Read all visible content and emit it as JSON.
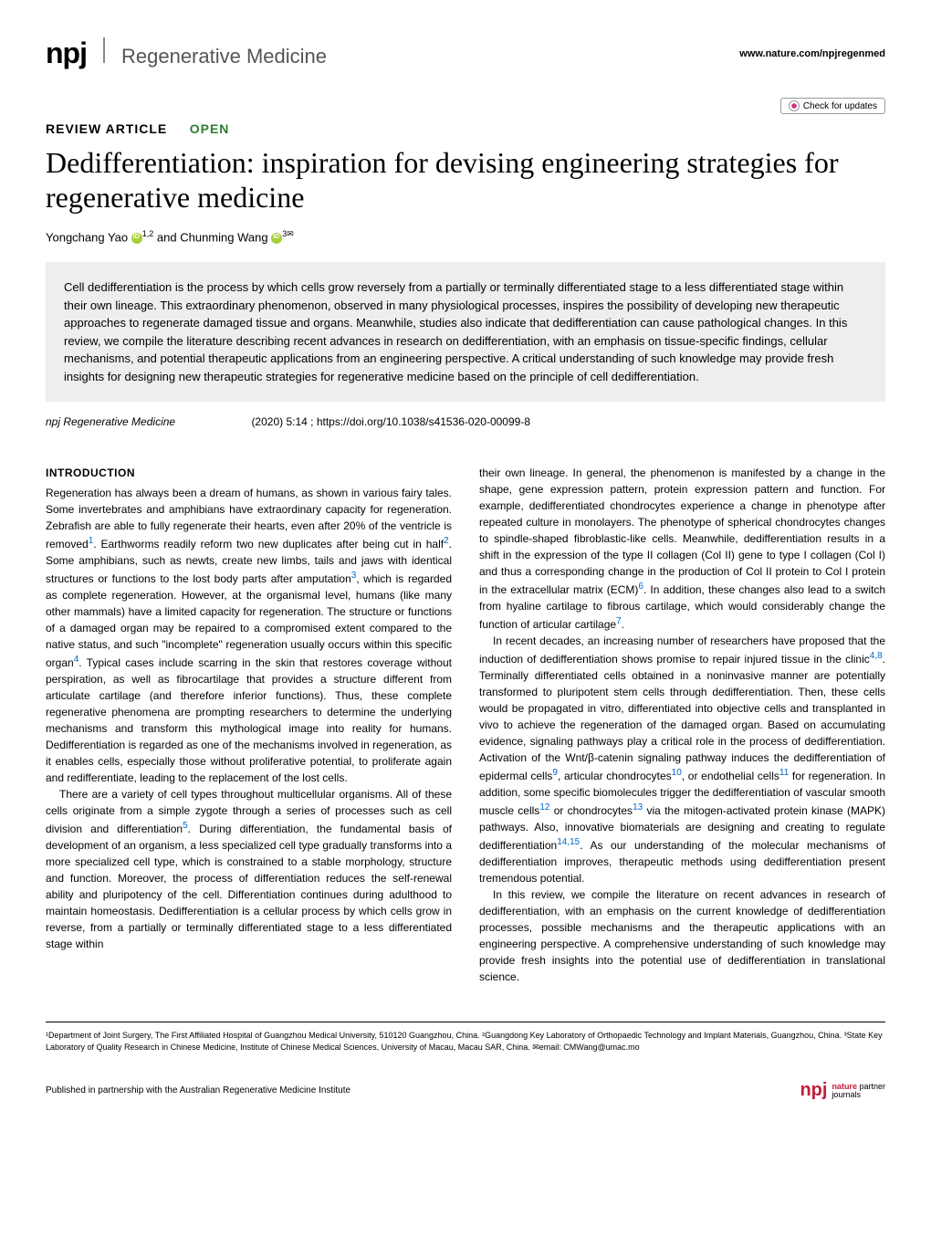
{
  "header": {
    "npj": "npj",
    "journal_name": "Regenerative Medicine",
    "website": "www.nature.com/npjregenmed"
  },
  "check_updates": "Check for updates",
  "article_type": "REVIEW ARTICLE",
  "open_label": "OPEN",
  "title": "Dedifferentiation: inspiration for devising engineering strategies for regenerative medicine",
  "authors": {
    "author1": "Yongchang Yao",
    "author1_affil": "1,2",
    "and": " and ",
    "author2": "Chunming Wang",
    "author2_affil": "3✉"
  },
  "abstract": "Cell dedifferentiation is the process by which cells grow reversely from a partially or terminally differentiated stage to a less differentiated stage within their own lineage. This extraordinary phenomenon, observed in many physiological processes, inspires the possibility of developing new therapeutic approaches to regenerate damaged tissue and organs. Meanwhile, studies also indicate that dedifferentiation can cause pathological changes. In this review, we compile the literature describing recent advances in research on dedifferentiation, with an emphasis on tissue-specific findings, cellular mechanisms, and potential therapeutic applications from an engineering perspective. A critical understanding of such knowledge may provide fresh insights for designing new therapeutic strategies for regenerative medicine based on the principle of cell dedifferentiation.",
  "citation": {
    "journal": "npj Regenerative Medicine",
    "volume_info": "(2020) 5:14 ; https://doi.org/10.1038/s41536-020-00099-8"
  },
  "section_heading": "INTRODUCTION",
  "col1": {
    "p1a": "Regeneration has always been a dream of humans, as shown in various fairy tales. Some invertebrates and amphibians have extraordinary capacity for regeneration. Zebrafish are able to fully regenerate their hearts, even after 20% of the ventricle is removed",
    "r1": "1",
    "p1b": ". Earthworms readily reform two new duplicates after being cut in half",
    "r2": "2",
    "p1c": ". Some amphibians, such as newts, create new limbs, tails and jaws with identical structures or functions to the lost body parts after amputation",
    "r3": "3",
    "p1d": ", which is regarded as complete regeneration. However, at the organismal level, humans (like many other mammals) have a limited capacity for regeneration. The structure or functions of a damaged organ may be repaired to a compromised extent compared to the native status, and such \"incomplete\" regeneration usually occurs within this specific organ",
    "r4": "4",
    "p1e": ". Typical cases include scarring in the skin that restores coverage without perspiration, as well as fibrocartilage that provides a structure different from articulate cartilage (and therefore inferior functions). Thus, these complete regenerative phenomena are prompting researchers to determine the underlying mechanisms and transform this mythological image into reality for humans. Dedifferentiation is regarded as one of the mechanisms involved in regeneration, as it enables cells, especially those without proliferative potential, to proliferate again and redifferentiate, leading to the replacement of the lost cells.",
    "p2a": "There are a variety of cell types throughout multicellular organisms. All of these cells originate from a simple zygote through a series of processes such as cell division and differentiation",
    "r5": "5",
    "p2b": ". During differentiation, the fundamental basis of development of an organism, a less specialized cell type gradually transforms into a more specialized cell type, which is constrained to a stable morphology, structure and function. Moreover, the process of differentiation reduces the self-renewal ability and pluripotency of the cell. Differentiation continues during adulthood to maintain homeostasis. Dedifferentiation is a cellular process by which cells grow in reverse, from a partially or terminally differentiated stage to a less differentiated stage within"
  },
  "col2": {
    "p1a": "their own lineage. In general, the phenomenon is manifested by a change in the shape, gene expression pattern, protein expression pattern and function. For example, dedifferentiated chondrocytes experience a change in phenotype after repeated culture in monolayers. The phenotype of spherical chondrocytes changes to spindle-shaped fibroblastic-like cells. Meanwhile, dedifferentiation results in a shift in the expression of the type II collagen (Col II) gene to type I collagen (Col I) and thus a corresponding change in the production of Col II protein to Col I protein in the extracellular matrix (ECM)",
    "r6": "6",
    "p1b": ". In addition, these changes also lead to a switch from hyaline cartilage to fibrous cartilage, which would considerably change the function of articular cartilage",
    "r7": "7",
    "p1c": ".",
    "p2a": "In recent decades, an increasing number of researchers have proposed that the induction of dedifferentiation shows promise to repair injured tissue in the clinic",
    "r48": "4,8",
    "p2b": ". Terminally differentiated cells obtained in a noninvasive manner are potentially transformed to pluripotent stem cells through dedifferentiation. Then, these cells would be propagated in vitro, differentiated into objective cells and transplanted in vivo to achieve the regeneration of the damaged organ. Based on accumulating evidence, signaling pathways play a critical role in the process of dedifferentiation. Activation of the Wnt/β-catenin signaling pathway induces the dedifferentiation of epidermal cells",
    "r9": "9",
    "p2c": ", articular chondrocytes",
    "r10": "10",
    "p2d": ", or endothelial cells",
    "r11": "11",
    "p2e": " for regeneration. In addition, some specific biomolecules trigger the dedifferentiation of vascular smooth muscle cells",
    "r12": "12",
    "p2f": " or chondrocytes",
    "r13": "13",
    "p2g": " via the mitogen-activated protein kinase (MAPK) pathways. Also, innovative biomaterials are designing and creating to regulate dedifferentiation",
    "r1415": "14,15",
    "p2h": ". As our understanding of the molecular mechanisms of dedifferentiation improves, therapeutic methods using dedifferentiation present tremendous potential.",
    "p3": "In this review, we compile the literature on recent advances in research of dedifferentiation, with an emphasis on the current knowledge of dedifferentiation processes, possible mechanisms and the therapeutic applications with an engineering perspective. A comprehensive understanding of such knowledge may provide fresh insights into the potential use of dedifferentiation in translational science."
  },
  "affiliations": "¹Department of Joint Surgery, The First Affiliated Hospital of Guangzhou Medical University, 510120 Guangzhou, China. ²Guangdong Key Laboratory of Orthopaedic Technology and Implant Materials, Guangzhou, China. ³State Key Laboratory of Quality Research in Chinese Medicine, Institute of Chinese Medical Sciences, University of Macau, Macau SAR, China. ✉email: CMWang@umac.mo",
  "footer": {
    "left": "Published in partnership with the Australian Regenerative Medicine Institute",
    "npj": "npj",
    "nature": "nature",
    "partner": "partner",
    "journals": "journals"
  }
}
